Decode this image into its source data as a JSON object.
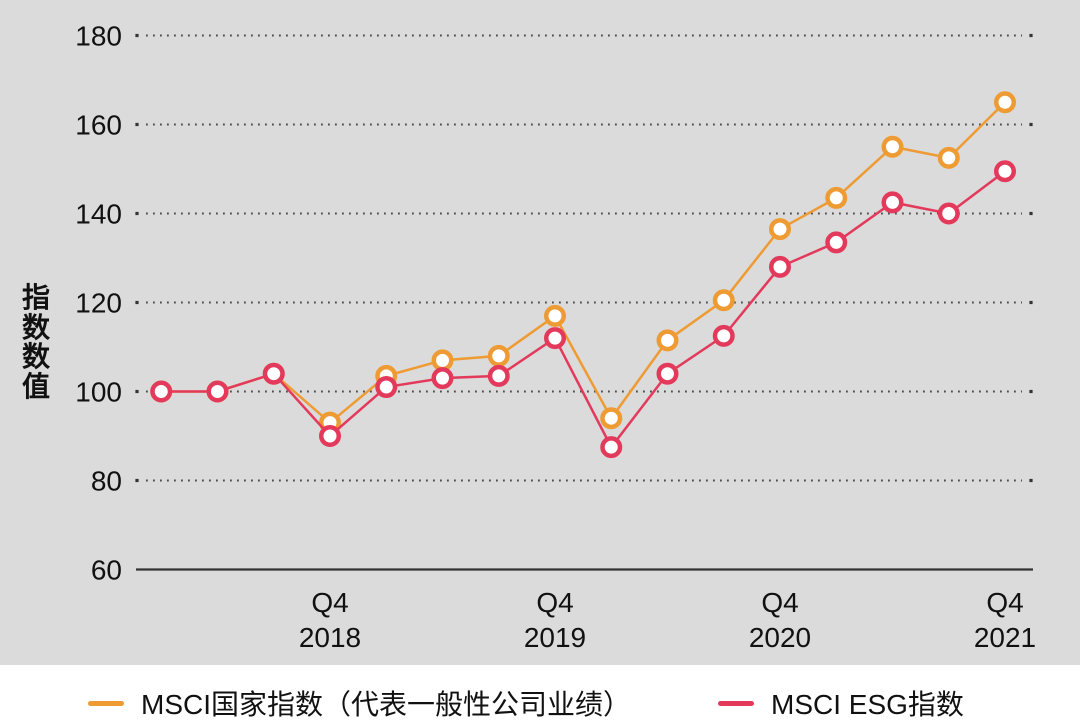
{
  "chart": {
    "background_color": "#dbdbdb",
    "legend_area_color": "#ffffff",
    "grid_dot_color": "#4d4d4d",
    "axis_line_color": "#333333",
    "text_color": "#111111"
  },
  "chart_data": {
    "type": "line",
    "title": "",
    "ylabel": "指数数值",
    "xlabel": "",
    "ylim": [
      60,
      180
    ],
    "yticks": [
      60,
      80,
      100,
      120,
      140,
      160,
      180
    ],
    "grid": "dotted horizontal gridlines, solid baseline at 60",
    "legend_position": "bottom",
    "x": [
      "2018 Q1",
      "2018 Q2",
      "2018 Q3",
      "2018 Q4",
      "2019 Q1",
      "2019 Q2",
      "2019 Q3",
      "2019 Q4",
      "2020 Q1",
      "2020 Q2",
      "2020 Q3",
      "2020 Q4",
      "2021 Q1",
      "2021 Q2",
      "2021 Q3",
      "2021 Q4"
    ],
    "x_tick_labels": [
      {
        "index": 3,
        "quarter": "Q4",
        "year": "2018"
      },
      {
        "index": 7,
        "quarter": "Q4",
        "year": "2019"
      },
      {
        "index": 11,
        "quarter": "Q4",
        "year": "2020"
      },
      {
        "index": 15,
        "quarter": "Q4",
        "year": "2021"
      }
    ],
    "series": [
      {
        "name": "MSCI国家指数（代表一般性公司业绩）",
        "color": "#ee9b33",
        "marker": "circle-white-fill",
        "values": [
          100,
          100,
          104,
          93,
          103.5,
          107,
          108,
          117,
          94,
          111.5,
          120.5,
          136.5,
          143.5,
          155,
          152.5,
          165
        ]
      },
      {
        "name": "MSCI ESG指数",
        "color": "#e33a5c",
        "marker": "circle-white-fill",
        "values": [
          100,
          100,
          104,
          90,
          101,
          103,
          103.5,
          112,
          87.5,
          104,
          112.5,
          128,
          133.5,
          142.5,
          140,
          149.5
        ]
      }
    ]
  }
}
